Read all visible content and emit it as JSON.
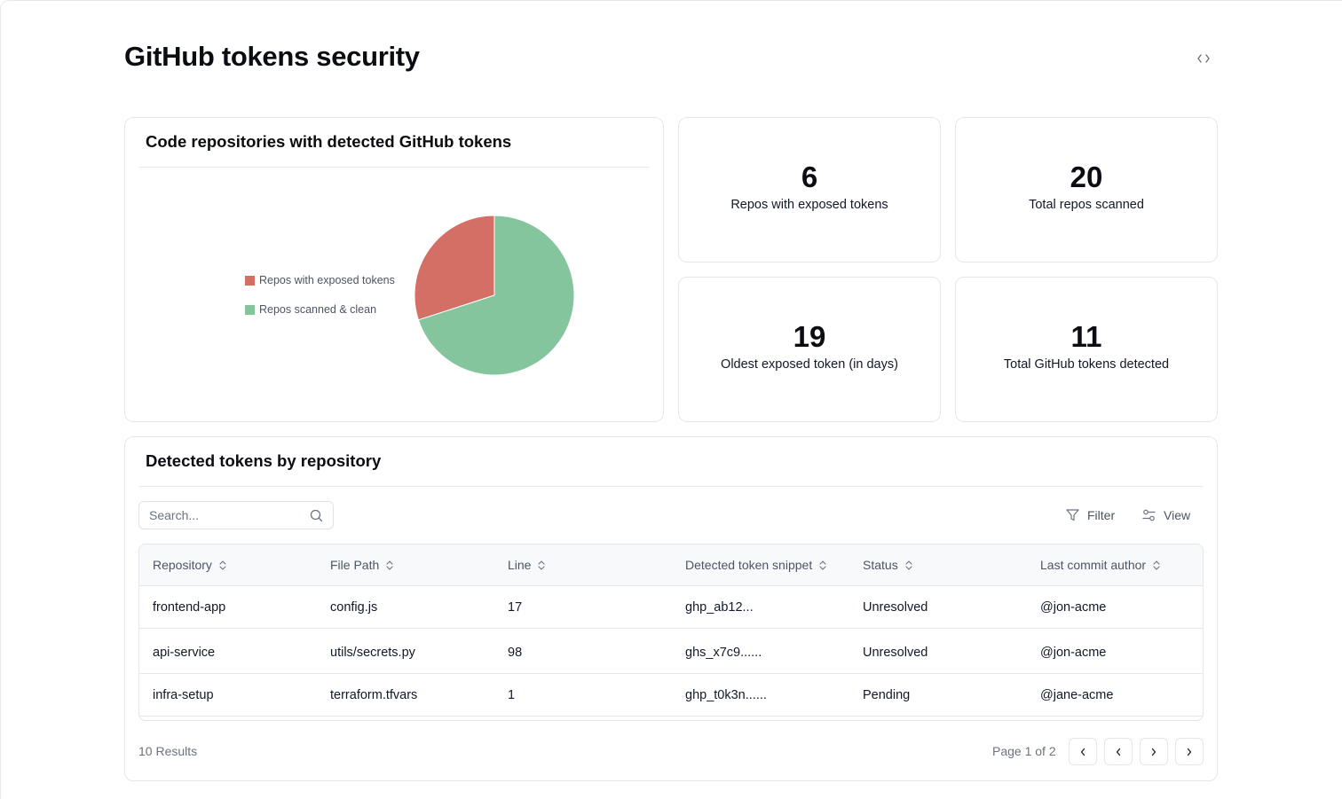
{
  "header": {
    "title": "GitHub tokens security",
    "code_icon": "code-brackets-icon"
  },
  "chart_card": {
    "title": "Code repositories with detected GitHub tokens"
  },
  "chart_data": {
    "type": "pie",
    "labels": [
      "Repos with exposed tokens",
      "Repos scanned & clean"
    ],
    "values": [
      6,
      14
    ],
    "colors": [
      "#d46f66",
      "#85c59e"
    ],
    "legend_position": "left"
  },
  "stats": [
    {
      "value": "6",
      "label": "Repos with exposed tokens"
    },
    {
      "value": "20",
      "label": "Total repos scanned"
    },
    {
      "value": "19",
      "label": "Oldest exposed token (in days)"
    },
    {
      "value": "11",
      "label": "Total GitHub tokens detected"
    }
  ],
  "table_card": {
    "title": "Detected tokens by repository",
    "search_placeholder": "Search...",
    "filter_label": "Filter",
    "view_label": "View",
    "columns": [
      "Repository",
      "File Path",
      "Line",
      "Detected token snippet",
      "Status",
      "Last commit author"
    ],
    "rows": [
      {
        "repository": "frontend-app",
        "file_path": "config.js",
        "line": "17",
        "snippet": "ghp_ab12...",
        "status": "Unresolved",
        "author": "@jon-acme"
      },
      {
        "repository": "api-service",
        "file_path": "utils/secrets.py",
        "line": "98",
        "snippet": "ghs_x7c9......",
        "status": "Unresolved",
        "author": "@jon-acme"
      },
      {
        "repository": "infra-setup",
        "file_path": "terraform.tfvars",
        "line": "1",
        "snippet": "ghp_t0k3n......",
        "status": "Pending",
        "author": "@jane-acme"
      }
    ],
    "results_label": "10 Results",
    "page_label": "Page 1 of 2"
  }
}
